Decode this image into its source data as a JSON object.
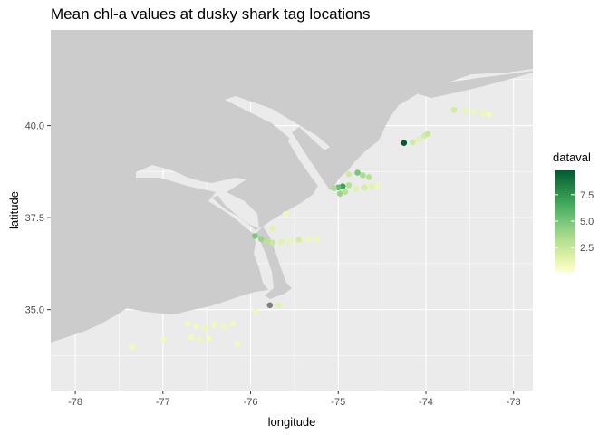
{
  "chart_data": {
    "type": "scatter",
    "title": "Mean chl-a values at dusky shark tag locations",
    "xlabel": "longitude",
    "ylabel": "latitude",
    "xlim": [
      -78.28,
      -72.78
    ],
    "ylim": [
      32.8,
      42.6
    ],
    "x_ticks": [
      -78,
      -77,
      -76,
      -75,
      -74,
      -73
    ],
    "x_tick_labels": [
      "-78",
      "-77",
      "-76",
      "-75",
      "-74",
      "-73"
    ],
    "y_ticks": [
      35.0,
      37.5,
      40.0
    ],
    "y_tick_labels": [
      "35.0",
      "37.5",
      "40.0"
    ],
    "grid": true,
    "legend": {
      "title": "dataval",
      "position": "right",
      "range": [
        0.2,
        9.8
      ],
      "ticks": [
        2.5,
        5.0,
        7.5
      ],
      "tick_labels": [
        "2.5",
        "5.0",
        "7.5"
      ],
      "colors": [
        "#ffffcc",
        "#d9f0a3",
        "#addd8e",
        "#78c679",
        "#41ab5d",
        "#238443",
        "#005a32"
      ],
      "na_color": "#7f7f7f"
    },
    "series": [
      {
        "points": [
          {
            "x": -73.68,
            "y": 40.43,
            "v": 2.2
          },
          {
            "x": -73.55,
            "y": 40.4,
            "v": 1.2
          },
          {
            "x": -73.45,
            "y": 40.38,
            "v": 1.0
          },
          {
            "x": -73.35,
            "y": 40.33,
            "v": 1.0
          },
          {
            "x": -73.28,
            "y": 40.3,
            "v": 0.8
          },
          {
            "x": -74.25,
            "y": 39.53,
            "v": 9.8
          },
          {
            "x": -74.15,
            "y": 39.55,
            "v": 2.2
          },
          {
            "x": -74.08,
            "y": 39.62,
            "v": 1.5
          },
          {
            "x": -74.02,
            "y": 39.72,
            "v": 2.0
          },
          {
            "x": -73.98,
            "y": 39.78,
            "v": 2.5
          },
          {
            "x": -74.88,
            "y": 38.68,
            "v": 2.2
          },
          {
            "x": -74.78,
            "y": 38.72,
            "v": 5.0
          },
          {
            "x": -74.72,
            "y": 38.65,
            "v": 3.5
          },
          {
            "x": -74.65,
            "y": 38.6,
            "v": 3.0
          },
          {
            "x": -74.55,
            "y": 38.38,
            "v": 1.0
          },
          {
            "x": -74.62,
            "y": 38.35,
            "v": 1.5
          },
          {
            "x": -74.7,
            "y": 38.32,
            "v": 2.0
          },
          {
            "x": -74.8,
            "y": 38.28,
            "v": 1.5
          },
          {
            "x": -74.88,
            "y": 38.38,
            "v": 3.0
          },
          {
            "x": -74.95,
            "y": 38.35,
            "v": 7.0
          },
          {
            "x": -75.0,
            "y": 38.32,
            "v": 5.5
          },
          {
            "x": -75.05,
            "y": 38.3,
            "v": 3.5
          },
          {
            "x": -74.98,
            "y": 38.15,
            "v": 4.0
          },
          {
            "x": -74.92,
            "y": 38.2,
            "v": 3.0
          },
          {
            "x": -75.6,
            "y": 37.6,
            "v": 1.0
          },
          {
            "x": -75.75,
            "y": 37.2,
            "v": 1.5
          },
          {
            "x": -75.95,
            "y": 37.0,
            "v": 5.0
          },
          {
            "x": -75.88,
            "y": 36.92,
            "v": 4.0
          },
          {
            "x": -75.82,
            "y": 36.85,
            "v": 3.0
          },
          {
            "x": -75.75,
            "y": 36.82,
            "v": 2.5
          },
          {
            "x": -75.65,
            "y": 36.85,
            "v": 1.5
          },
          {
            "x": -75.55,
            "y": 36.87,
            "v": 1.2
          },
          {
            "x": -75.45,
            "y": 36.9,
            "v": 2.0
          },
          {
            "x": -75.35,
            "y": 36.92,
            "v": 1.0
          },
          {
            "x": -75.25,
            "y": 36.92,
            "v": 1.0
          },
          {
            "x": -75.78,
            "y": 35.12,
            "v": null
          },
          {
            "x": -75.68,
            "y": 35.12,
            "v": 1.5
          },
          {
            "x": -75.95,
            "y": 34.95,
            "v": 1.0
          },
          {
            "x": -76.72,
            "y": 34.62,
            "v": 0.8
          },
          {
            "x": -76.62,
            "y": 34.55,
            "v": 0.8
          },
          {
            "x": -76.52,
            "y": 34.5,
            "v": 1.0
          },
          {
            "x": -76.42,
            "y": 34.6,
            "v": 0.8
          },
          {
            "x": -76.3,
            "y": 34.55,
            "v": 1.0
          },
          {
            "x": -76.2,
            "y": 34.62,
            "v": 0.8
          },
          {
            "x": -76.68,
            "y": 34.25,
            "v": 0.8
          },
          {
            "x": -76.58,
            "y": 34.2,
            "v": 1.0
          },
          {
            "x": -76.48,
            "y": 34.22,
            "v": 0.8
          },
          {
            "x": -76.15,
            "y": 34.08,
            "v": 0.8
          },
          {
            "x": -77.0,
            "y": 34.18,
            "v": 0.8
          },
          {
            "x": -77.35,
            "y": 33.98,
            "v": 0.8
          }
        ]
      }
    ]
  }
}
